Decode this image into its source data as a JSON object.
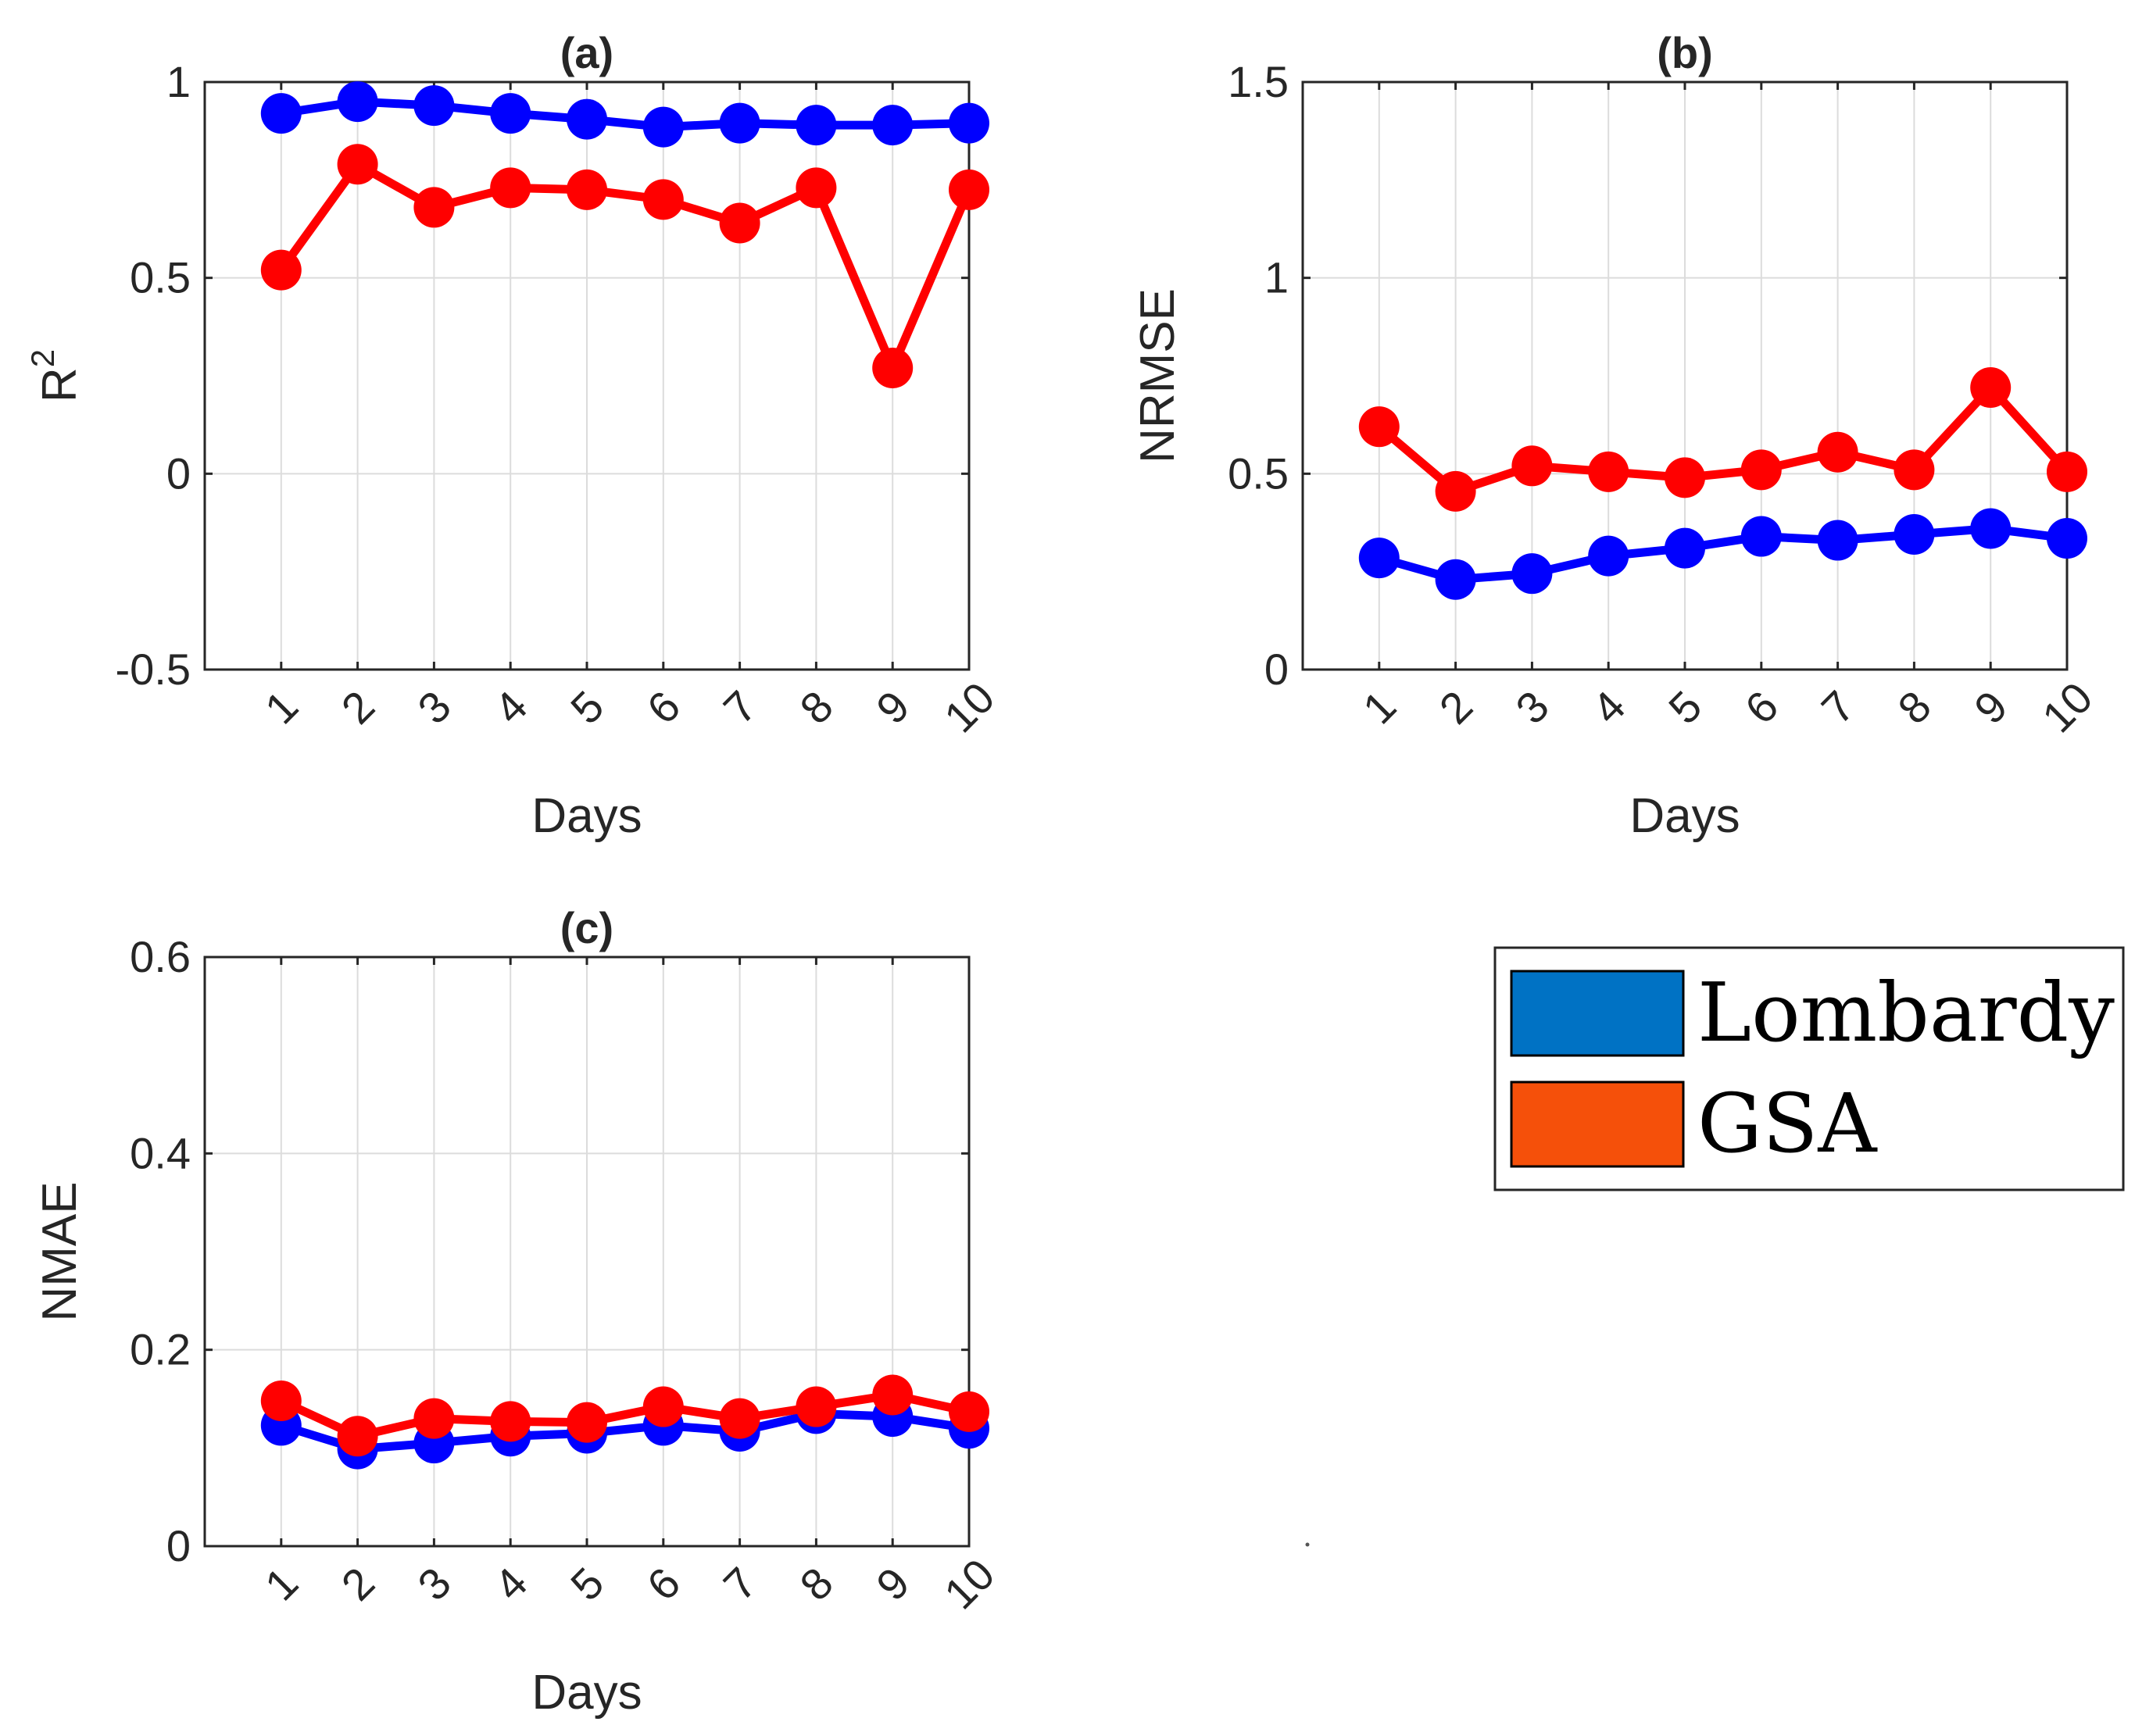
{
  "chart_data": [
    {
      "type": "line",
      "panel": "a",
      "title": "(a)",
      "xlabel": "Days",
      "ylabel": "R",
      "ylabel_superscript": "2",
      "categories": [
        "1",
        "2",
        "3",
        "4",
        "5",
        "6",
        "7",
        "8",
        "9",
        "10"
      ],
      "x": [
        1,
        2,
        3,
        4,
        5,
        6,
        7,
        8,
        9,
        10
      ],
      "xlim": [
        0,
        10
      ],
      "ylim": [
        -0.5,
        1
      ],
      "yticks": [
        -0.5,
        0,
        0.5,
        1
      ],
      "ytick_labels": [
        "-0.5",
        "0",
        "0.5",
        "1"
      ],
      "grid": true,
      "series": [
        {
          "name": "Lombardy",
          "color": "#0000ff",
          "values": [
            0.92,
            0.95,
            0.94,
            0.92,
            0.905,
            0.885,
            0.895,
            0.89,
            0.89,
            0.895
          ]
        },
        {
          "name": "GSA",
          "color": "#ff0000",
          "values": [
            0.52,
            0.79,
            0.68,
            0.73,
            0.725,
            0.7,
            0.64,
            0.73,
            0.27,
            0.725
          ]
        }
      ]
    },
    {
      "type": "line",
      "panel": "b",
      "title": "(b)",
      "xlabel": "Days",
      "ylabel": "NRMSE",
      "categories": [
        "1",
        "2",
        "3",
        "4",
        "5",
        "6",
        "7",
        "8",
        "9",
        "10"
      ],
      "x": [
        1,
        2,
        3,
        4,
        5,
        6,
        7,
        8,
        9,
        10
      ],
      "xlim": [
        0,
        10
      ],
      "ylim": [
        0,
        1.5
      ],
      "yticks": [
        0,
        0.5,
        1,
        1.5
      ],
      "ytick_labels": [
        "0",
        "0.5",
        "1",
        "1.5"
      ],
      "grid": true,
      "series": [
        {
          "name": "Lombardy",
          "color": "#0000ff",
          "values": [
            0.285,
            0.23,
            0.245,
            0.29,
            0.31,
            0.34,
            0.33,
            0.345,
            0.36,
            0.335
          ]
        },
        {
          "name": "GSA",
          "color": "#ff0000",
          "values": [
            0.62,
            0.455,
            0.52,
            0.505,
            0.49,
            0.51,
            0.555,
            0.51,
            0.72,
            0.505
          ]
        }
      ]
    },
    {
      "type": "line",
      "panel": "c",
      "title": "(c)",
      "xlabel": "Days",
      "ylabel": "NMAE",
      "categories": [
        "1",
        "2",
        "3",
        "4",
        "5",
        "6",
        "7",
        "8",
        "9",
        "10"
      ],
      "x": [
        1,
        2,
        3,
        4,
        5,
        6,
        7,
        8,
        9,
        10
      ],
      "xlim": [
        0,
        10
      ],
      "ylim": [
        0,
        0.6
      ],
      "yticks": [
        0,
        0.2,
        0.4,
        0.6
      ],
      "ytick_labels": [
        "0",
        "0.2",
        "0.4",
        "0.6"
      ],
      "grid": true,
      "series": [
        {
          "name": "Lombardy",
          "color": "#0000ff",
          "values": [
            0.123,
            0.099,
            0.105,
            0.112,
            0.115,
            0.123,
            0.117,
            0.135,
            0.132,
            0.12
          ]
        },
        {
          "name": "GSA",
          "color": "#ff0000",
          "values": [
            0.148,
            0.112,
            0.13,
            0.127,
            0.126,
            0.142,
            0.13,
            0.142,
            0.154,
            0.137
          ]
        }
      ]
    }
  ],
  "legend": {
    "placement": "bottom-right",
    "items": [
      {
        "label": "Lombardy",
        "color": "#0072c4"
      },
      {
        "label": "GSA",
        "color": "#f5500a"
      }
    ]
  }
}
